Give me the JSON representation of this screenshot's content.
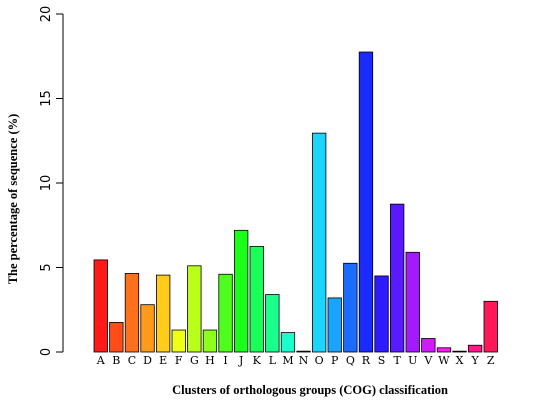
{
  "chart_data": {
    "type": "bar",
    "xlabel": "Clusters of orthologous groups (COG) classification",
    "ylabel": "The percentage of sequence (%)",
    "ylim": [
      0,
      20
    ],
    "yticks": [
      "0",
      "5",
      "10",
      "15",
      "20"
    ],
    "grid": false,
    "categories": [
      "A",
      "B",
      "C",
      "D",
      "E",
      "F",
      "G",
      "H",
      "I",
      "J",
      "K",
      "L",
      "M",
      "N",
      "O",
      "P",
      "Q",
      "R",
      "S",
      "T",
      "U",
      "V",
      "W",
      "X",
      "Y",
      "Z"
    ],
    "values": [
      5.45,
      1.75,
      4.65,
      2.8,
      4.55,
      1.3,
      5.1,
      1.3,
      4.6,
      7.2,
      6.25,
      3.4,
      1.15,
      0.05,
      12.95,
      3.2,
      5.25,
      17.75,
      4.5,
      8.75,
      5.9,
      0.8,
      0.25,
      0.05,
      0.4,
      3.0
    ],
    "colors": [
      "#ff1a1a",
      "#ff4d1a",
      "#ff701a",
      "#ff9a1a",
      "#ffcc1a",
      "#eeff1a",
      "#b8ff1a",
      "#8cff1a",
      "#4dff1a",
      "#1aff1a",
      "#1aff57",
      "#1aff8c",
      "#1affcc",
      "#1affee",
      "#1ad6ff",
      "#1aa3ff",
      "#1a6bff",
      "#1a2bff",
      "#2e1aff",
      "#5a1aff",
      "#a31aff",
      "#d11aff",
      "#ff1aee",
      "#ff1ac2",
      "#ff1a8c",
      "#ff1a57"
    ]
  }
}
